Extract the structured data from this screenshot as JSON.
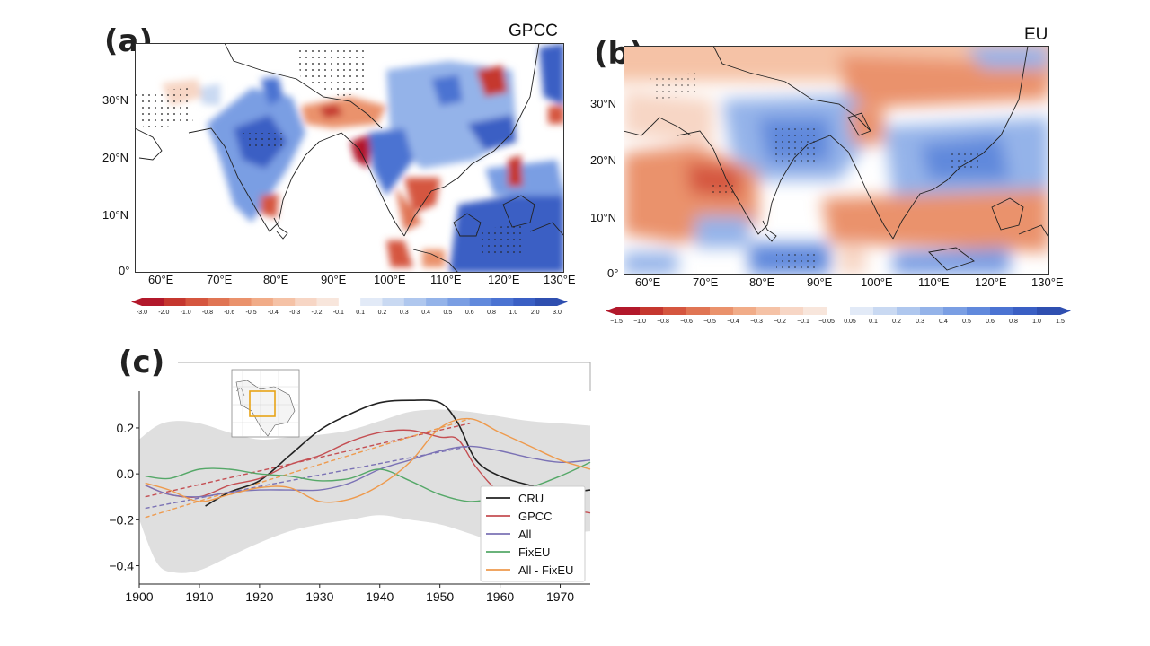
{
  "panel_a": {
    "letter": "(a)",
    "title": "GPCC",
    "lat_labels": [
      "30°N",
      "20°N",
      "10°N",
      "0°"
    ],
    "lon_labels": [
      "60°E",
      "70°E",
      "80°E",
      "90°E",
      "100°E",
      "110°E",
      "120°E",
      "130°E"
    ],
    "colorbar_ticks": [
      "-3.0",
      "-2.0",
      "-1.0",
      "-0.8",
      "-0.6",
      "-0.5",
      "-0.4",
      "-0.3",
      "-0.2",
      "-0.1",
      "0.1",
      "0.2",
      "0.3",
      "0.4",
      "0.5",
      "0.6",
      "0.8",
      "1.0",
      "2.0",
      "3.0"
    ]
  },
  "panel_b": {
    "letter": "(b)",
    "title": "EU",
    "lat_labels": [
      "30°N",
      "20°N",
      "10°N",
      "0°"
    ],
    "lon_labels": [
      "60°E",
      "70°E",
      "80°E",
      "90°E",
      "100°E",
      "110°E",
      "120°E",
      "130°E"
    ],
    "colorbar_ticks": [
      "−1.5",
      "−1.0",
      "−0.8",
      "−0.6",
      "−0.5",
      "−0.4",
      "−0.3",
      "−0.2",
      "−0.1",
      "−0.05",
      "0.05",
      "0.1",
      "0.2",
      "0.3",
      "0.4",
      "0.5",
      "0.6",
      "0.8",
      "1.0",
      "1.5"
    ]
  },
  "panel_c": {
    "letter": "(c)"
  },
  "colors": {
    "neg": [
      "#b2182b",
      "#c5372f",
      "#d5563f",
      "#e07554",
      "#ea926c",
      "#f1ac88",
      "#f5c2a6",
      "#f7d6c5",
      "#f8e6dc"
    ],
    "pos": [
      "#e2eaf7",
      "#c9d9f2",
      "#afc7ee",
      "#94b3e9",
      "#7a9ee3",
      "#6189dc",
      "#4b73d2",
      "#3a5fc4",
      "#2f4fb0"
    ],
    "CRU": "#222222",
    "GPCC": "#c44e52",
    "All": "#7b72b5",
    "FixEU": "#55a868",
    "All - FixEU": "#ee9a4d"
  },
  "chart_data": {
    "type": "line",
    "xlim": [
      1900,
      1975
    ],
    "ylim": [
      -0.48,
      0.36
    ],
    "x_ticks": [
      "1900",
      "1910",
      "1920",
      "1930",
      "1940",
      "1950",
      "1960",
      "1970"
    ],
    "y_ticks": [
      "0.2",
      "0.0",
      "−0.2",
      "−0.4"
    ],
    "y_tick_values": [
      0.2,
      0.0,
      -0.2,
      -0.4
    ],
    "x_tick_values": [
      1900,
      1910,
      1920,
      1930,
      1940,
      1950,
      1960,
      1970
    ],
    "legend_position": "lower-right",
    "spread_band": {
      "x": [
        1900,
        1903,
        1906,
        1910,
        1915,
        1920,
        1925,
        1930,
        1935,
        1940,
        1945,
        1950,
        1955,
        1960,
        1965,
        1970,
        1975
      ],
      "upper": [
        0.15,
        0.21,
        0.23,
        0.22,
        0.18,
        0.15,
        0.16,
        0.17,
        0.19,
        0.23,
        0.27,
        0.28,
        0.27,
        0.25,
        0.23,
        0.22,
        0.21
      ],
      "lower": [
        -0.2,
        -0.39,
        -0.43,
        -0.42,
        -0.36,
        -0.3,
        -0.25,
        -0.22,
        -0.2,
        -0.18,
        -0.2,
        -0.22,
        -0.26,
        -0.3,
        -0.28,
        -0.26,
        -0.25
      ]
    },
    "series": [
      {
        "name": "CRU",
        "x": [
          1911,
          1915,
          1920,
          1925,
          1930,
          1935,
          1940,
          1945,
          1950,
          1953,
          1956,
          1960,
          1965,
          1970,
          1975
        ],
        "values": [
          -0.14,
          -0.08,
          -0.03,
          0.08,
          0.19,
          0.26,
          0.31,
          0.32,
          0.31,
          0.22,
          0.06,
          -0.01,
          -0.05,
          -0.08,
          -0.07
        ]
      },
      {
        "name": "GPCC",
        "x": [
          1901,
          1905,
          1910,
          1915,
          1920,
          1925,
          1930,
          1935,
          1940,
          1945,
          1950,
          1953,
          1956,
          1960,
          1965,
          1970,
          1975
        ],
        "values": [
          -0.05,
          -0.09,
          -0.1,
          -0.05,
          -0.02,
          0.04,
          0.08,
          0.14,
          0.18,
          0.19,
          0.16,
          0.15,
          0.03,
          -0.08,
          -0.12,
          -0.15,
          -0.17
        ]
      },
      {
        "name": "All",
        "x": [
          1901,
          1905,
          1910,
          1915,
          1920,
          1925,
          1930,
          1935,
          1940,
          1945,
          1950,
          1955,
          1960,
          1965,
          1970,
          1975
        ],
        "values": [
          -0.05,
          -0.09,
          -0.1,
          -0.08,
          -0.07,
          -0.07,
          -0.07,
          -0.04,
          0.02,
          0.06,
          0.1,
          0.12,
          0.1,
          0.07,
          0.05,
          0.06
        ]
      },
      {
        "name": "FixEU",
        "x": [
          1901,
          1905,
          1910,
          1915,
          1920,
          1925,
          1930,
          1935,
          1940,
          1945,
          1950,
          1955,
          1960,
          1965,
          1970,
          1975
        ],
        "values": [
          -0.01,
          -0.02,
          0.02,
          0.02,
          0.0,
          -0.01,
          -0.03,
          -0.02,
          0.02,
          -0.03,
          -0.09,
          -0.12,
          -0.1,
          -0.06,
          -0.01,
          0.05
        ]
      },
      {
        "name": "All - FixEU",
        "x": [
          1901,
          1905,
          1910,
          1915,
          1920,
          1925,
          1930,
          1935,
          1940,
          1945,
          1950,
          1955,
          1960,
          1965,
          1970,
          1975
        ],
        "values": [
          -0.04,
          -0.07,
          -0.12,
          -0.09,
          -0.06,
          -0.06,
          -0.12,
          -0.11,
          -0.05,
          0.05,
          0.2,
          0.24,
          0.18,
          0.12,
          0.06,
          0.02
        ]
      }
    ],
    "trend_lines": [
      {
        "name": "GPCC",
        "x": [
          1901,
          1955
        ],
        "values": [
          -0.1,
          0.22
        ]
      },
      {
        "name": "All",
        "x": [
          1901,
          1955
        ],
        "values": [
          -0.15,
          0.12
        ]
      },
      {
        "name": "All - FixEU",
        "x": [
          1901,
          1955
        ],
        "values": [
          -0.19,
          0.24
        ]
      }
    ]
  }
}
